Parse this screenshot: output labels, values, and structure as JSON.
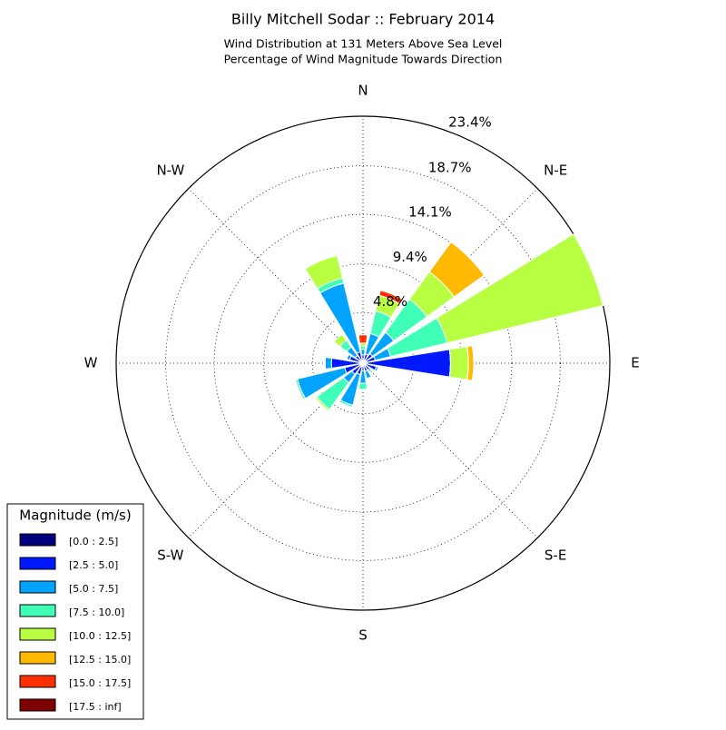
{
  "chart_data": {
    "type": "windrose",
    "title": "Billy Mitchell Sodar :: February 2014",
    "subtitle": [
      "Wind Distribution at 131 Meters Above Sea Level",
      "Percentage of Wind Magnitude Towards Direction"
    ],
    "categories": [
      "N",
      null,
      "N-E",
      null,
      "E",
      null,
      "S-E",
      null,
      "S",
      null,
      "S-W",
      null,
      "W",
      null,
      "N-W",
      null
    ],
    "rlim": [
      0,
      23.4
    ],
    "rticks": [
      {
        "value": 4.8,
        "label": "4.8%"
      },
      {
        "value": 9.4,
        "label": "9.4%"
      },
      {
        "value": 14.1,
        "label": "14.1%"
      },
      {
        "value": 18.7,
        "label": "18.7%"
      },
      {
        "value": 23.4,
        "label": "23.4%"
      }
    ],
    "grid": true,
    "legend_title": "Magnitude (m/s)",
    "legend_position": "lower left",
    "series": [
      {
        "name": "[0.0 : 2.5]",
        "color": "#00007f",
        "values": [
          0.3,
          0.3,
          0.3,
          0.3,
          0.4,
          0.3,
          0.3,
          0.2,
          0.2,
          0.3,
          0.3,
          0.3,
          0.3,
          0.3,
          0.3,
          0.3
        ]
      },
      {
        "name": "[2.5 : 5.0]",
        "color": "#0019ff",
        "values": [
          0.5,
          0.6,
          0.8,
          0.9,
          7.9,
          1.0,
          0.5,
          0.6,
          0.5,
          0.8,
          1.0,
          1.5,
          2.7,
          1.0,
          0.6,
          0.8
        ]
      },
      {
        "name": "[5.0 : 7.5]",
        "color": "#00a4ff",
        "values": [
          0.5,
          2.0,
          2.5,
          1.5,
          0,
          0.2,
          0.2,
          0.7,
          1.2,
          3.0,
          1.0,
          4.6,
          0.6,
          0.3,
          1.0,
          6.7
        ]
      },
      {
        "name": "[7.5 : 10.0]",
        "color": "#40ffb7",
        "values": [
          0.3,
          2.2,
          3.9,
          5.5,
          0,
          0,
          0,
          0,
          0.6,
          0.2,
          3.1,
          0.2,
          0,
          0,
          0.8,
          0.5
        ]
      },
      {
        "name": "[10.0 : 12.5]",
        "color": "#b7ff40",
        "values": [
          0.3,
          1.5,
          3.2,
          15.2,
          1.7,
          0,
          0,
          0,
          0,
          0,
          0.2,
          0,
          0,
          0,
          0.7,
          2.2
        ]
      },
      {
        "name": "[12.5 : 15.0]",
        "color": "#ffb900",
        "values": [
          0,
          0,
          3.5,
          0,
          0.5,
          0,
          0,
          0,
          0,
          0,
          0,
          0,
          0,
          0,
          0,
          0
        ]
      },
      {
        "name": "[15.0 : 17.5]",
        "color": "#ff3000",
        "values": [
          0.8,
          0.5,
          0,
          0,
          0,
          0,
          0,
          0,
          0,
          0,
          0,
          0,
          0,
          0,
          0,
          0
        ]
      },
      {
        "name": "[17.5 : inf]",
        "color": "#7f0000",
        "values": [
          0,
          0,
          0,
          0,
          0,
          0,
          0,
          0,
          0,
          0,
          0,
          0,
          0,
          0,
          0,
          0
        ]
      }
    ]
  }
}
